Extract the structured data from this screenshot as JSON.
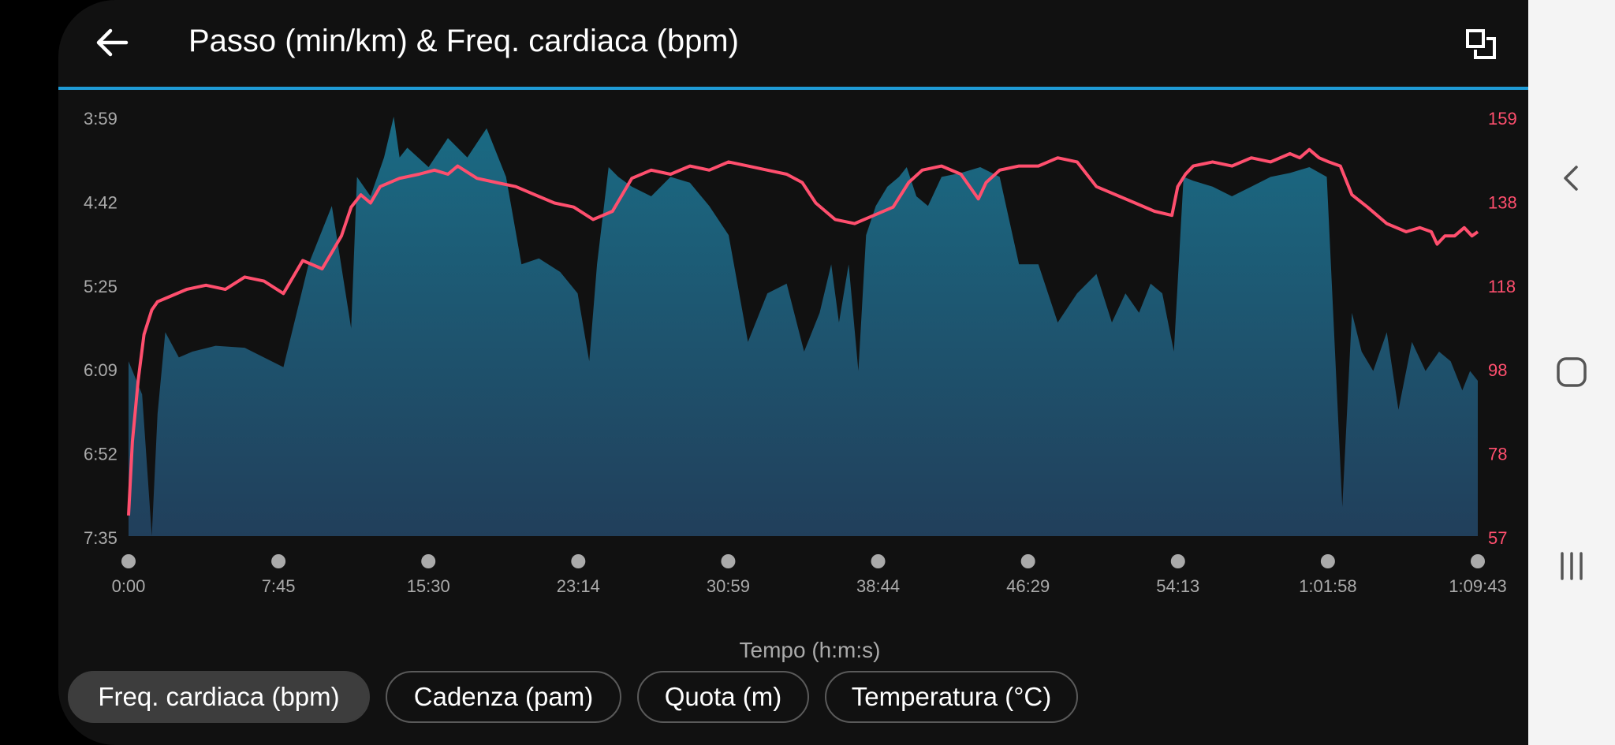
{
  "header": {
    "title": "Passo (min/km) & Freq. cardiaca (bpm)"
  },
  "icons": {
    "back": "arrow-left-icon",
    "expand": "window-restore-icon"
  },
  "colors": {
    "accent": "#1f9bd6",
    "heart_rate": "#ff4f6e",
    "pace_fill_top": "#1a6b84",
    "pace_fill_bottom": "#213f5b",
    "left_axis_text": "#aaaaaa",
    "right_axis_text": "#ff4f6e"
  },
  "chart_data": {
    "type": "area",
    "xlabel": "Tempo (h:m:s)",
    "x_ticks": [
      "0:00",
      "7:45",
      "15:30",
      "23:14",
      "30:59",
      "38:44",
      "46:29",
      "54:13",
      "1:01:58",
      "1:09:43"
    ],
    "y_left_ticks": [
      "3:59",
      "4:42",
      "5:25",
      "6:09",
      "6:52",
      "7:35"
    ],
    "y_right_ticks": [
      "159",
      "138",
      "118",
      "98",
      "78",
      "57"
    ],
    "ylim_right": [
      57,
      159
    ],
    "x_range_min": [
      0,
      69.7
    ],
    "series": [
      {
        "axis": "left",
        "x_min": [
          0,
          0.7,
          1.2,
          1.5,
          1.9,
          2.6,
          3.3,
          4.5,
          6,
          8,
          9.3,
          10.5,
          11.5,
          11.8,
          12.5,
          13.2,
          13.7,
          14,
          14.4,
          15.5,
          16.5,
          17.5,
          18.5,
          19.5,
          20.3,
          21.2,
          22.3,
          23.2,
          23.8,
          24.2,
          24.8,
          25.3,
          26,
          27,
          28,
          29,
          30,
          31,
          32,
          33,
          34,
          34.9,
          35.7,
          36.3,
          36.7,
          37.2,
          37.7,
          38.1,
          38.6,
          39.2,
          39.8,
          40.2,
          40.7,
          41.3,
          42,
          43,
          44,
          45,
          46,
          47,
          48,
          49,
          50,
          50.8,
          51.5,
          52.2,
          52.8,
          53.4,
          54,
          54.5,
          55,
          56,
          57,
          58,
          59,
          60,
          61,
          61.9,
          62.7,
          63.2,
          63.7,
          64.3,
          65,
          65.6,
          66.3,
          67,
          67.7,
          68.3,
          68.9,
          69.3,
          69.7
        ],
        "y_pace": [
          "6:05",
          "6:22",
          "7:35",
          "6:32",
          "5:50",
          "6:03",
          "6:00",
          "5:57",
          "5:58",
          "6:08",
          "5:15",
          "4:45",
          "5:48",
          "4:30",
          "4:40",
          "4:20",
          "3:59",
          "4:20",
          "4:15",
          "4:25",
          "4:10",
          "4:20",
          "4:05",
          "4:30",
          "5:15",
          "5:12",
          "5:19",
          "5:30",
          "6:05",
          "5:15",
          "4:25",
          "4:30",
          "4:35",
          "4:40",
          "4:30",
          "4:33",
          "4:45",
          "5:00",
          "5:55",
          "5:30",
          "5:25",
          "6:00",
          "5:40",
          "5:15",
          "5:45",
          "5:15",
          "6:10",
          "5:00",
          "4:45",
          "4:35",
          "4:30",
          "4:25",
          "4:40",
          "4:45",
          "4:30",
          "4:28",
          "4:25",
          "4:30",
          "5:15",
          "5:15",
          "5:45",
          "5:30",
          "5:20",
          "5:45",
          "5:30",
          "5:40",
          "5:25",
          "5:30",
          "6:00",
          "4:30",
          "4:32",
          "4:35",
          "4:40",
          "4:35",
          "4:30",
          "4:28",
          "4:25",
          "4:30",
          "7:20",
          "5:40",
          "6:00",
          "6:10",
          "5:50",
          "6:30",
          "5:55",
          "6:10",
          "6:00",
          "6:05",
          "6:20",
          "6:10",
          "6:15"
        ]
      },
      {
        "axis": "right",
        "x_min": [
          0,
          0.2,
          0.5,
          0.8,
          1.2,
          1.5,
          2,
          3,
          4,
          5,
          6,
          7,
          8,
          9,
          10,
          10.5,
          11,
          11.5,
          12,
          12.5,
          13,
          14,
          15,
          15.8,
          16.5,
          17,
          18,
          19,
          20,
          21,
          22,
          23,
          24,
          25,
          26,
          27,
          28,
          29,
          30,
          31,
          32,
          33,
          34,
          34.8,
          35.5,
          36.5,
          37.5,
          38.5,
          39.5,
          40.3,
          41,
          42,
          43,
          43.9,
          44.3,
          45,
          46,
          47,
          48,
          49,
          50,
          51,
          52,
          53,
          53.9,
          54.2,
          54.6,
          55,
          56,
          57,
          58,
          59,
          60,
          60.5,
          61,
          61.5,
          62,
          62.6,
          63.2,
          64,
          65,
          66,
          66.7,
          67.3,
          67.6,
          68,
          68.5,
          69,
          69.4,
          69.7
        ],
        "y_bpm": [
          62,
          80,
          95,
          106,
          112,
          114,
          115,
          117,
          118,
          117,
          120,
          119,
          116,
          124,
          122,
          126,
          130,
          137,
          140,
          138,
          142,
          144,
          145,
          146,
          145,
          147,
          144,
          143,
          142,
          140,
          138,
          137,
          134,
          136,
          144,
          146,
          145,
          147,
          146,
          148,
          147,
          146,
          145,
          143,
          138,
          134,
          133,
          135,
          137,
          143,
          146,
          147,
          145,
          139,
          143,
          146,
          147,
          147,
          149,
          148,
          142,
          140,
          138,
          136,
          135,
          142,
          145,
          147,
          148,
          147,
          149,
          148,
          150,
          149,
          151,
          149,
          148,
          147,
          140,
          137,
          133,
          131,
          132,
          131,
          128,
          130,
          130,
          132,
          130,
          131
        ]
      }
    ]
  },
  "filters": [
    {
      "label": "Freq. cardiaca (bpm)",
      "active": true
    },
    {
      "label": "Cadenza (pam)",
      "active": false
    },
    {
      "label": "Quota (m)",
      "active": false
    },
    {
      "label": "Temperatura (°C)",
      "active": false
    }
  ],
  "navbar": {
    "back": "chevron-left-icon",
    "home": "rounded-square-icon",
    "recents": "three-bars-icon"
  }
}
